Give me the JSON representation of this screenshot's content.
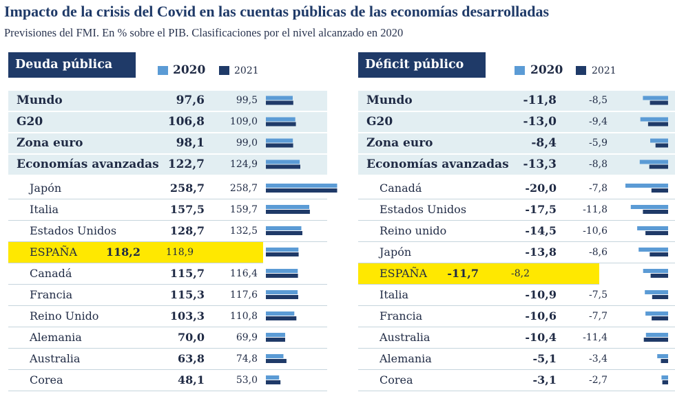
{
  "title": "Impacto de la crisis del Covid en las cuentas públicas de las economías desarrolladas",
  "subtitle": "Previsiones del FMI. En % sobre el PIB. Clasificaciones por el nivel alcanzado en 2020",
  "colors": {
    "series_2020": "#5b9bd5",
    "series_2021": "#1f3a68",
    "aggregate_bg": "#e2eef2",
    "highlight": "#ffe800",
    "header_bg": "#1f3a68"
  },
  "chart_data": [
    {
      "type": "bar",
      "title": "Deuda pública",
      "series": [
        {
          "name": "2020",
          "values": [
            97.6,
            106.8,
            98.1,
            122.7,
            258.7,
            157.5,
            128.7,
            118.2,
            115.7,
            115.3,
            103.3,
            70.0,
            63.8,
            48.1
          ]
        },
        {
          "name": "2021",
          "values": [
            99.5,
            109.0,
            99.0,
            124.9,
            258.7,
            159.7,
            132.5,
            118.9,
            116.4,
            117.6,
            110.8,
            69.9,
            74.8,
            53.0
          ]
        }
      ],
      "categories": [
        "Mundo",
        "G20",
        "Zona euro",
        "Economías avanzadas",
        "Japón",
        "Italia",
        "Estados Unidos",
        "ESPAÑA",
        "Canadá",
        "Francia",
        "Reino Unido",
        "Alemania",
        "Australia",
        "Corea"
      ],
      "rows": [
        {
          "name": "Mundo",
          "v2020": "97,6",
          "v2021": "99,5",
          "kind": "aggregate"
        },
        {
          "name": "G20",
          "v2020": "106,8",
          "v2021": "109,0",
          "kind": "aggregate"
        },
        {
          "name": "Zona euro",
          "v2020": "98,1",
          "v2021": "99,0",
          "kind": "aggregate"
        },
        {
          "name": "Economías avanzadas",
          "v2020": "122,7",
          "v2021": "124,9",
          "kind": "aggregate"
        },
        {
          "name": "Japón",
          "v2020": "258,7",
          "v2021": "258,7",
          "kind": "country"
        },
        {
          "name": "Italia",
          "v2020": "157,5",
          "v2021": "159,7",
          "kind": "country"
        },
        {
          "name": "Estados Unidos",
          "v2020": "128,7",
          "v2021": "132,5",
          "kind": "country"
        },
        {
          "name": "ESPAÑA",
          "v2020": "118,2",
          "v2021": "118,9",
          "kind": "highlight"
        },
        {
          "name": "Canadá",
          "v2020": "115,7",
          "v2021": "116,4",
          "kind": "country"
        },
        {
          "name": "Francia",
          "v2020": "115,3",
          "v2021": "117,6",
          "kind": "country"
        },
        {
          "name": "Reino Unido",
          "v2020": "103,3",
          "v2021": "110,8",
          "kind": "country"
        },
        {
          "name": "Alemania",
          "v2020": "70,0",
          "v2021": "69,9",
          "kind": "country"
        },
        {
          "name": "Australia",
          "v2020": "63,8",
          "v2021": "74,8",
          "kind": "country"
        },
        {
          "name": "Corea",
          "v2020": "48,1",
          "v2021": "53,0",
          "kind": "country"
        }
      ],
      "legend": [
        "2020",
        "2021"
      ],
      "direction": "positive",
      "xlim": [
        0,
        260
      ]
    },
    {
      "type": "bar",
      "title": "Déficit público",
      "series": [
        {
          "name": "2020",
          "values": [
            -11.8,
            -13.0,
            -8.4,
            -13.3,
            -20.0,
            -17.5,
            -14.5,
            -13.8,
            -11.7,
            -10.9,
            -10.6,
            -10.4,
            -5.1,
            -3.1
          ]
        },
        {
          "name": "2021",
          "values": [
            -8.5,
            -9.4,
            -5.9,
            -8.8,
            -7.8,
            -11.8,
            -10.6,
            -8.6,
            -8.2,
            -7.5,
            -7.7,
            -11.4,
            -3.4,
            -2.7
          ]
        }
      ],
      "categories": [
        "Mundo",
        "G20",
        "Zona euro",
        "Economías avanzadas",
        "Canadá",
        "Estados Unidos",
        "Reino unido",
        "Japón",
        "ESPAÑA",
        "Italia",
        "Francia",
        "Australia",
        "Alemania",
        "Corea"
      ],
      "rows": [
        {
          "name": "Mundo",
          "v2020": "-11,8",
          "v2021": "-8,5",
          "kind": "aggregate"
        },
        {
          "name": "G20",
          "v2020": "-13,0",
          "v2021": "-9,4",
          "kind": "aggregate"
        },
        {
          "name": "Zona euro",
          "v2020": "-8,4",
          "v2021": "-5,9",
          "kind": "aggregate"
        },
        {
          "name": "Economías avanzadas",
          "v2020": "-13,3",
          "v2021": "-8,8",
          "kind": "aggregate"
        },
        {
          "name": "Canadá",
          "v2020": "-20,0",
          "v2021": "-7,8",
          "kind": "country"
        },
        {
          "name": "Estados Unidos",
          "v2020": "-17,5",
          "v2021": "-11,8",
          "kind": "country"
        },
        {
          "name": "Reino unido",
          "v2020": "-14,5",
          "v2021": "-10,6",
          "kind": "country"
        },
        {
          "name": "Japón",
          "v2020": "-13,8",
          "v2021": "-8,6",
          "kind": "country"
        },
        {
          "name": "ESPAÑA",
          "v2020": "-11,7",
          "v2021": "-8,2",
          "kind": "highlight"
        },
        {
          "name": "Italia",
          "v2020": "-10,9",
          "v2021": "-7,5",
          "kind": "country"
        },
        {
          "name": "Francia",
          "v2020": "-10,6",
          "v2021": "-7,7",
          "kind": "country"
        },
        {
          "name": "Australia",
          "v2020": "-10,4",
          "v2021": "-11,4",
          "kind": "country"
        },
        {
          "name": "Alemania",
          "v2020": "-5,1",
          "v2021": "-3,4",
          "kind": "country"
        },
        {
          "name": "Corea",
          "v2020": "-3,1",
          "v2021": "-2,7",
          "kind": "country"
        }
      ],
      "legend": [
        "2020",
        "2021"
      ],
      "direction": "negative",
      "xlim": [
        -20,
        0
      ]
    }
  ]
}
